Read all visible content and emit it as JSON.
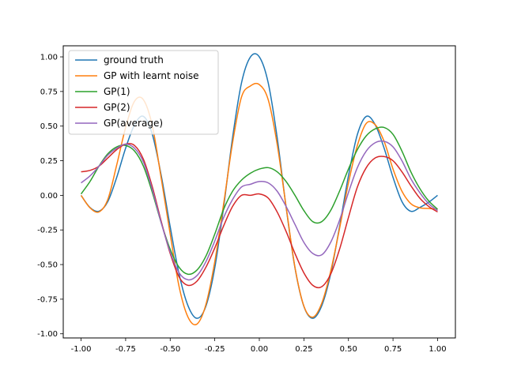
{
  "chart_data": {
    "type": "line",
    "xlim": [
      -1.1,
      1.1
    ],
    "ylim": [
      -1.03,
      1.08
    ],
    "x_ticks": [
      "-1.00",
      "-0.75",
      "-0.50",
      "-0.25",
      "0.00",
      "0.25",
      "0.50",
      "0.75",
      "1.00"
    ],
    "y_ticks": [
      "-1.00",
      "-0.75",
      "-0.50",
      "-0.25",
      "0.00",
      "0.25",
      "0.50",
      "0.75",
      "1.00"
    ],
    "grid": false,
    "legend_position": "top-left",
    "series": [
      {
        "name": "ground truth",
        "color": "#1f77b4",
        "x": [
          -1.0,
          -0.95,
          -0.9,
          -0.85,
          -0.8,
          -0.75,
          -0.7,
          -0.65,
          -0.6,
          -0.55,
          -0.5,
          -0.45,
          -0.4,
          -0.35,
          -0.3,
          -0.25,
          -0.2,
          -0.15,
          -0.1,
          -0.05,
          0.0,
          0.05,
          0.1,
          0.15,
          0.2,
          0.25,
          0.3,
          0.35,
          0.4,
          0.45,
          0.5,
          0.55,
          0.6,
          0.65,
          0.7,
          0.75,
          0.8,
          0.85,
          0.9,
          0.95,
          1.0
        ],
        "y": [
          0.0,
          -0.088,
          -0.115,
          -0.045,
          0.13,
          0.341,
          0.51,
          0.57,
          0.439,
          0.141,
          -0.227,
          -0.569,
          -0.798,
          -0.888,
          -0.802,
          -0.524,
          -0.083,
          0.418,
          0.812,
          0.999,
          1.0,
          0.812,
          0.418,
          -0.083,
          -0.524,
          -0.802,
          -0.888,
          -0.798,
          -0.569,
          -0.227,
          0.141,
          0.439,
          0.57,
          0.51,
          0.341,
          0.13,
          -0.045,
          -0.115,
          -0.088,
          -0.05,
          0.0
        ]
      },
      {
        "name": "GP with learnt noise",
        "color": "#ff7f0e",
        "x": [
          -1.0,
          -0.95,
          -0.9,
          -0.85,
          -0.8,
          -0.75,
          -0.7,
          -0.65,
          -0.6,
          -0.55,
          -0.5,
          -0.45,
          -0.4,
          -0.35,
          -0.3,
          -0.25,
          -0.2,
          -0.15,
          -0.1,
          -0.05,
          0.0,
          0.05,
          0.1,
          0.15,
          0.2,
          0.25,
          0.3,
          0.35,
          0.4,
          0.45,
          0.5,
          0.55,
          0.6,
          0.65,
          0.7,
          0.75,
          0.8,
          0.85,
          0.9,
          0.95,
          1.0
        ],
        "y": [
          0.0,
          -0.09,
          -0.12,
          -0.03,
          0.22,
          0.49,
          0.68,
          0.69,
          0.5,
          0.12,
          -0.28,
          -0.66,
          -0.88,
          -0.93,
          -0.79,
          -0.48,
          -0.06,
          0.38,
          0.71,
          0.79,
          0.8,
          0.69,
          0.37,
          -0.08,
          -0.52,
          -0.8,
          -0.88,
          -0.78,
          -0.55,
          -0.24,
          0.09,
          0.36,
          0.52,
          0.51,
          0.39,
          0.19,
          0.03,
          -0.06,
          -0.09,
          -0.095,
          -0.1
        ]
      },
      {
        "name": "GP(1)",
        "color": "#2ca02c",
        "x": [
          -1.0,
          -0.95,
          -0.9,
          -0.85,
          -0.8,
          -0.75,
          -0.7,
          -0.65,
          -0.6,
          -0.55,
          -0.5,
          -0.45,
          -0.4,
          -0.35,
          -0.3,
          -0.25,
          -0.2,
          -0.15,
          -0.1,
          -0.05,
          0.0,
          0.05,
          0.1,
          0.15,
          0.2,
          0.25,
          0.3,
          0.35,
          0.4,
          0.45,
          0.5,
          0.55,
          0.6,
          0.65,
          0.7,
          0.75,
          0.8,
          0.85,
          0.9,
          0.95,
          1.0
        ],
        "y": [
          0.01,
          0.1,
          0.21,
          0.3,
          0.35,
          0.36,
          0.32,
          0.21,
          0.02,
          -0.2,
          -0.39,
          -0.52,
          -0.57,
          -0.54,
          -0.44,
          -0.28,
          -0.1,
          0.03,
          0.11,
          0.16,
          0.19,
          0.2,
          0.17,
          0.1,
          0.0,
          -0.11,
          -0.19,
          -0.19,
          -0.11,
          0.03,
          0.19,
          0.33,
          0.43,
          0.48,
          0.49,
          0.44,
          0.32,
          0.17,
          0.05,
          -0.04,
          -0.1
        ]
      },
      {
        "name": "GP(2)",
        "color": "#d62728",
        "x": [
          -1.0,
          -0.95,
          -0.9,
          -0.85,
          -0.8,
          -0.75,
          -0.7,
          -0.65,
          -0.6,
          -0.55,
          -0.5,
          -0.45,
          -0.4,
          -0.35,
          -0.3,
          -0.25,
          -0.2,
          -0.15,
          -0.1,
          -0.05,
          0.0,
          0.05,
          0.1,
          0.15,
          0.2,
          0.25,
          0.3,
          0.35,
          0.4,
          0.45,
          0.5,
          0.55,
          0.6,
          0.65,
          0.7,
          0.75,
          0.8,
          0.85,
          0.9,
          0.95,
          1.0
        ],
        "y": [
          0.17,
          0.18,
          0.21,
          0.27,
          0.33,
          0.37,
          0.36,
          0.26,
          0.06,
          -0.19,
          -0.42,
          -0.59,
          -0.65,
          -0.62,
          -0.52,
          -0.38,
          -0.22,
          -0.08,
          0.0,
          0.0,
          0.01,
          -0.02,
          -0.12,
          -0.26,
          -0.42,
          -0.56,
          -0.65,
          -0.66,
          -0.57,
          -0.39,
          -0.16,
          0.06,
          0.2,
          0.27,
          0.28,
          0.25,
          0.17,
          0.07,
          -0.02,
          -0.08,
          -0.12
        ]
      },
      {
        "name": "GP(average)",
        "color": "#9467bd",
        "x": [
          -1.0,
          -0.95,
          -0.9,
          -0.85,
          -0.8,
          -0.75,
          -0.7,
          -0.65,
          -0.6,
          -0.55,
          -0.5,
          -0.45,
          -0.4,
          -0.35,
          -0.3,
          -0.25,
          -0.2,
          -0.15,
          -0.1,
          -0.05,
          0.0,
          0.05,
          0.1,
          0.15,
          0.2,
          0.25,
          0.3,
          0.35,
          0.4,
          0.45,
          0.5,
          0.55,
          0.6,
          0.65,
          0.7,
          0.75,
          0.8,
          0.85,
          0.9,
          0.95,
          1.0
        ],
        "y": [
          0.09,
          0.14,
          0.21,
          0.29,
          0.34,
          0.37,
          0.34,
          0.24,
          0.04,
          -0.2,
          -0.41,
          -0.56,
          -0.61,
          -0.58,
          -0.48,
          -0.33,
          -0.16,
          -0.03,
          0.06,
          0.08,
          0.1,
          0.09,
          0.03,
          -0.08,
          -0.21,
          -0.34,
          -0.42,
          -0.43,
          -0.34,
          -0.18,
          0.02,
          0.2,
          0.32,
          0.38,
          0.39,
          0.35,
          0.25,
          0.12,
          0.02,
          -0.06,
          -0.11
        ]
      }
    ]
  }
}
